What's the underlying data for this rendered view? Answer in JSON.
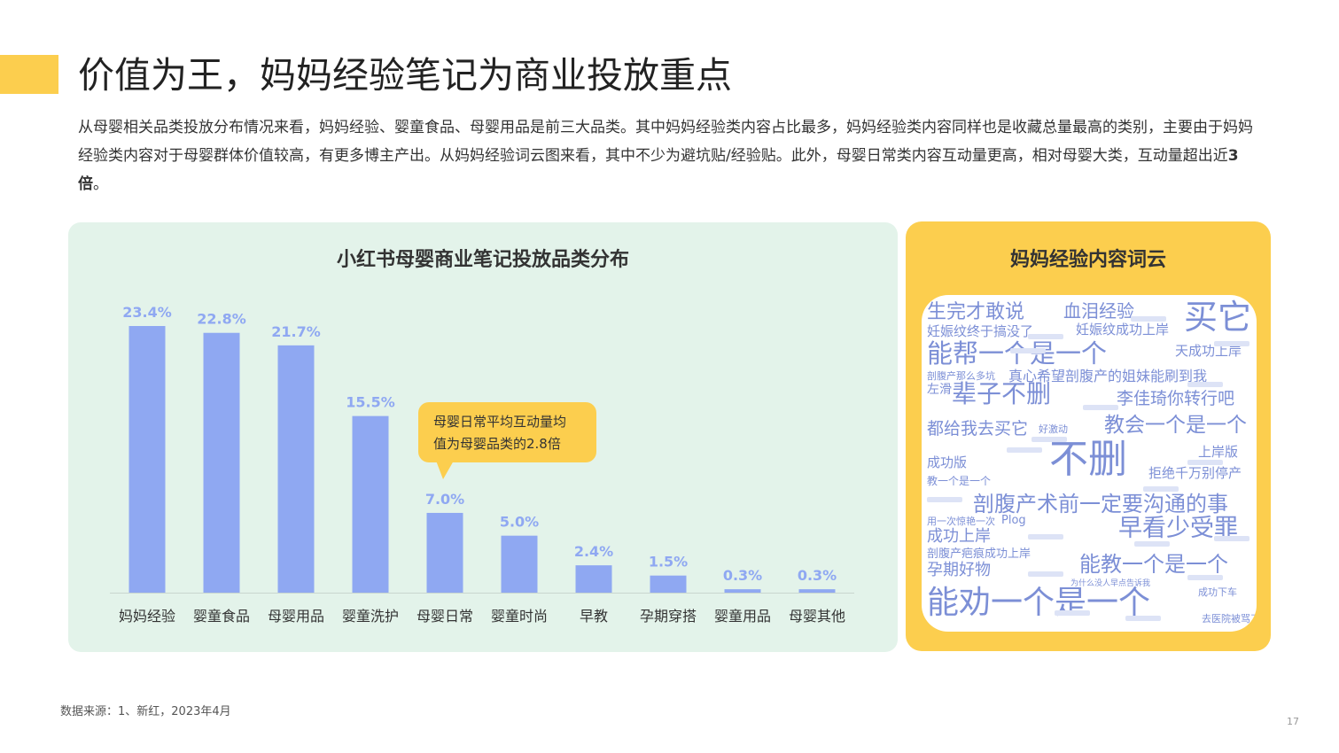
{
  "header": {
    "title": "价值为王，妈妈经验笔记为商业投放重点",
    "intro_1": "从母婴相关品类投放分布情况来看，妈妈经验、婴童食品、母婴用品是前三大品类。其中妈妈经验类内容占比最多，妈妈经验类内容同样也是收藏总量最高的类别，主要由于妈妈经验类内容对于母婴群体价值较高，有更多博主产出。从妈妈经验词云图来看，其中不少为避坑贴/经验贴。此外，母婴日常类内容互动量更高，相对母婴大类，互动量超出近",
    "intro_bold": "3倍",
    "intro_end": "。"
  },
  "chart_data": {
    "type": "bar",
    "title": "小红书母婴商业笔记投放品类分布",
    "categories": [
      "妈妈经验",
      "婴童食品",
      "母婴用品",
      "婴童洗护",
      "母婴日常",
      "婴童时尚",
      "早教",
      "孕期穿搭",
      "婴童用品",
      "母婴其他"
    ],
    "values": [
      23.4,
      22.8,
      21.7,
      15.5,
      7.0,
      5.0,
      2.4,
      1.5,
      0.3,
      0.3
    ],
    "value_labels": [
      "23.4%",
      "22.8%",
      "21.7%",
      "15.5%",
      "7.0%",
      "5.0%",
      "2.4%",
      "1.5%",
      "0.3%",
      "0.3%"
    ],
    "ylim": [
      0,
      23.4
    ],
    "grid": false,
    "legend": "none",
    "bar_color": "#8FA8F2",
    "label_color": "#8FA8F2",
    "callout": "母婴日常平均互动量均值为母婴品类的2.8倍"
  },
  "wordcloud": {
    "title": "妈妈经验内容词云",
    "color": "#7C8FD6",
    "words": [
      "生完才敢说",
      "血泪经验",
      "买它",
      "妊娠纹终于搞没了",
      "妊娠纹成功上岸",
      "能帮一个是一个",
      "天成功上岸",
      "剖腹产那么多坑",
      "真心希望剖腹产的姐妹能刷到我",
      "左滑",
      "辈子不删",
      "李佳琦你转行吧",
      "都给我去买它",
      "好激动",
      "教会一个是一个",
      "成功版",
      "不删",
      "上岸版",
      "拒绝千万别停产",
      "教一个是一个",
      "剖腹产术前一定要沟通的事",
      "用一次惊艳一次",
      "Plog",
      "早看少受罪",
      "成功上岸",
      "剖腹产疤痕成功上岸",
      "孕期好物",
      "能教一个是一个",
      "能劝一个是一个",
      "为什么没人早点告诉我",
      "去医院被骂了",
      "成功下车"
    ]
  },
  "footer": {
    "source": "数据来源：1、新红，2023年4月",
    "page_number": "17"
  }
}
